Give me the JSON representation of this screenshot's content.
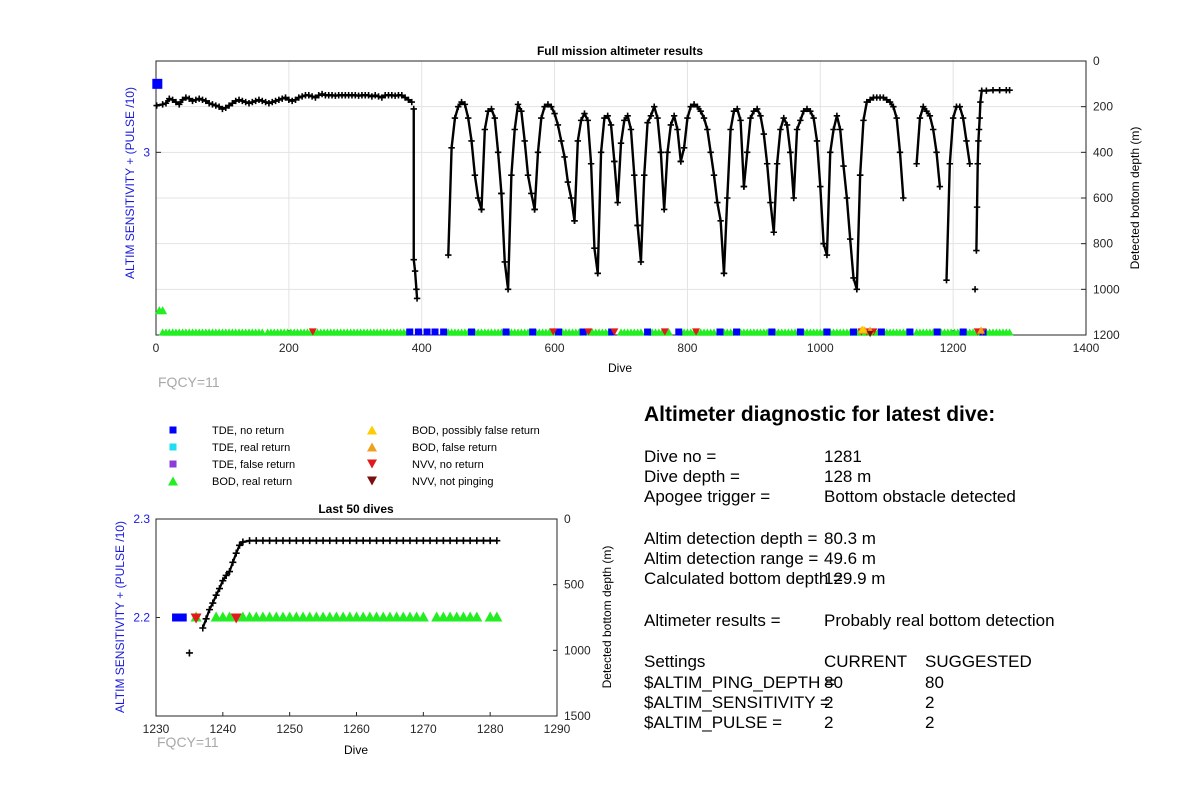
{
  "chart_data": [
    {
      "type": "scatter",
      "title": "Full mission altimeter results",
      "xlabel": "Dive",
      "ylabel_left": "ALTIM SENSITIVITY + (PULSE /10)",
      "ylabel_right": "Detected bottom depth (m)",
      "xlim": [
        0,
        1400
      ],
      "xticks": [
        "0",
        "200",
        "400",
        "600",
        "800",
        "1000",
        "1200",
        "1400"
      ],
      "ylim_left": [
        2.2,
        3.4
      ],
      "yticks_left": [
        "3"
      ],
      "ylim_right_reversed": [
        0,
        1200
      ],
      "yticks_right": [
        "0",
        "200",
        "400",
        "600",
        "800",
        "1000",
        "1200"
      ],
      "grid": true,
      "annotation": "FQCY=11",
      "sensitivity_series": [
        {
          "name": "blue-square",
          "points": [
            [
              2,
              3.3
            ]
          ]
        },
        {
          "name": "green-triangle",
          "points": [
            [
              5,
              2.3
            ],
            [
              10,
              2.3
            ]
          ]
        }
      ],
      "depth_segments": [
        {
          "x": [
            1,
            10,
            15,
            20,
            25,
            30,
            35,
            40,
            45,
            50,
            55,
            60,
            65,
            70,
            75,
            80,
            85,
            90,
            95,
            100,
            105,
            110,
            115,
            120,
            125,
            130,
            135,
            140,
            145,
            150,
            155,
            160,
            165,
            170,
            175,
            180,
            185,
            190,
            195,
            200,
            205,
            210,
            215,
            220,
            225,
            230,
            235,
            240,
            245,
            250,
            255,
            260,
            265,
            270,
            275,
            280,
            285,
            290,
            295,
            300,
            305,
            310,
            315,
            320,
            325,
            330,
            335,
            340,
            345,
            350,
            355,
            360,
            365,
            370,
            375,
            380,
            385
          ],
          "y": [
            195,
            190,
            185,
            165,
            170,
            180,
            190,
            170,
            160,
            165,
            175,
            170,
            165,
            170,
            175,
            185,
            190,
            195,
            200,
            210,
            205,
            195,
            185,
            175,
            170,
            175,
            180,
            185,
            180,
            175,
            170,
            175,
            180,
            185,
            180,
            175,
            170,
            165,
            160,
            170,
            175,
            170,
            160,
            155,
            150,
            150,
            155,
            160,
            150,
            145,
            150,
            150,
            150,
            152,
            150,
            150,
            150,
            150,
            150,
            150,
            152,
            150,
            150,
            150,
            155,
            150,
            155,
            160,
            150,
            150,
            150,
            152,
            150,
            150,
            160,
            170,
            180
          ]
        },
        {
          "x": [
            388,
            388,
            390,
            392,
            393
          ],
          "y": [
            210,
            870,
            920,
            1000,
            1040
          ]
        },
        {
          "x": [
            440,
            445,
            450,
            455,
            460,
            465,
            470,
            475,
            480,
            485,
            490
          ],
          "y": [
            850,
            380,
            250,
            200,
            180,
            190,
            250,
            350,
            500,
            600,
            650
          ]
        },
        {
          "x": [
            490,
            495,
            500,
            505,
            510,
            515,
            520
          ],
          "y": [
            650,
            300,
            220,
            210,
            250,
            400,
            580
          ]
        },
        {
          "x": [
            520,
            525,
            530,
            535,
            540,
            545,
            550,
            555,
            560,
            565,
            570
          ],
          "y": [
            580,
            880,
            1000,
            500,
            300,
            190,
            220,
            350,
            500,
            580,
            650
          ]
        },
        {
          "x": [
            570,
            575,
            580,
            585,
            590,
            595,
            600,
            605,
            610,
            615,
            620,
            625,
            630
          ],
          "y": [
            650,
            400,
            250,
            200,
            190,
            200,
            230,
            280,
            350,
            420,
            530,
            600,
            700
          ]
        },
        {
          "x": [
            630,
            635,
            640,
            645,
            650,
            655,
            660,
            665
          ],
          "y": [
            700,
            350,
            260,
            230,
            260,
            450,
            820,
            930
          ]
        },
        {
          "x": [
            665,
            670,
            675,
            680,
            685,
            690
          ],
          "y": [
            930,
            400,
            250,
            240,
            280,
            440
          ]
        },
        {
          "x": [
            690,
            695,
            700,
            705,
            710,
            715,
            720,
            725
          ],
          "y": [
            440,
            620,
            360,
            260,
            240,
            300,
            500,
            720
          ]
        },
        {
          "x": [
            725,
            730,
            735,
            740,
            745,
            750,
            755,
            760
          ],
          "y": [
            720,
            880,
            500,
            270,
            240,
            200,
            250,
            400
          ]
        },
        {
          "x": [
            760,
            765,
            770,
            775,
            780,
            785,
            790
          ],
          "y": [
            400,
            650,
            400,
            280,
            240,
            300,
            440
          ]
        },
        {
          "x": [
            790,
            795,
            800,
            805,
            810,
            815,
            820,
            825,
            830,
            835,
            840,
            845,
            850,
            855
          ],
          "y": [
            440,
            380,
            250,
            200,
            190,
            200,
            220,
            250,
            300,
            400,
            500,
            620,
            700,
            930
          ]
        },
        {
          "x": [
            855,
            860,
            865,
            870,
            875,
            880,
            885
          ],
          "y": [
            930,
            600,
            300,
            220,
            210,
            260,
            550
          ]
        },
        {
          "x": [
            885,
            890,
            895,
            900,
            905,
            910,
            915,
            920,
            925,
            930
          ],
          "y": [
            550,
            400,
            250,
            220,
            210,
            240,
            320,
            450,
            620,
            750
          ]
        },
        {
          "x": [
            930,
            935,
            940,
            945,
            950,
            955
          ],
          "y": [
            750,
            450,
            300,
            250,
            280,
            400
          ]
        },
        {
          "x": [
            955,
            960,
            965,
            970,
            975,
            980,
            985,
            990,
            995,
            1000,
            1005
          ],
          "y": [
            400,
            600,
            300,
            260,
            220,
            210,
            220,
            250,
            350,
            550,
            800
          ]
        },
        {
          "x": [
            1005,
            1010,
            1015,
            1020,
            1025,
            1030,
            1035,
            1040,
            1045,
            1050,
            1055,
            1060
          ],
          "y": [
            800,
            850,
            400,
            300,
            240,
            300,
            460,
            600,
            780,
            950,
            1000,
            500
          ]
        },
        {
          "x": [
            1060,
            1065,
            1070,
            1075,
            1080,
            1085,
            1090,
            1095,
            1100,
            1105,
            1110,
            1115,
            1120,
            1125
          ],
          "y": [
            500,
            260,
            180,
            170,
            160,
            160,
            160,
            160,
            170,
            180,
            200,
            250,
            400,
            600
          ]
        },
        {
          "x": [
            1145,
            1150,
            1155,
            1160,
            1165,
            1170,
            1175,
            1180
          ],
          "y": [
            450,
            250,
            200,
            220,
            240,
            300,
            400,
            550
          ]
        },
        {
          "x": [
            1190,
            1195,
            1200,
            1205,
            1210,
            1215,
            1220,
            1225
          ],
          "y": [
            960,
            450,
            250,
            200,
            200,
            250,
            350,
            450
          ]
        },
        {
          "x": [
            1233
          ],
          "y": [
            1000
          ]
        },
        {
          "x": [
            1235,
            1236,
            1237,
            1238,
            1239,
            1240,
            1241,
            1243,
            1250,
            1260,
            1270,
            1280,
            1285
          ],
          "y": [
            830,
            640,
            450,
            350,
            300,
            250,
            180,
            130,
            130,
            128,
            128,
            128,
            128
          ]
        }
      ],
      "bottom_markers": {
        "green_triangle_ranges": [
          [
            10,
            160
          ],
          [
            168,
            378
          ],
          [
            440,
            470
          ],
          [
            480,
            520
          ],
          [
            530,
            560
          ],
          [
            572,
            600
          ],
          [
            612,
            640
          ],
          [
            652,
            686
          ],
          [
            700,
            730
          ],
          [
            742,
            776
          ],
          [
            790,
            842
          ],
          [
            855,
            870
          ],
          [
            880,
            920
          ],
          [
            932,
            966
          ],
          [
            975,
            1005
          ],
          [
            1015,
            1045
          ],
          [
            1052,
            1088
          ],
          [
            1100,
            1130
          ],
          [
            1145,
            1172
          ],
          [
            1182,
            1212
          ],
          [
            1220,
            1285
          ]
        ],
        "blue_square_x": [
          382,
          395,
          408,
          420,
          433,
          475,
          527,
          567,
          606,
          643,
          686,
          740,
          787,
          849,
          874,
          927,
          970,
          1010,
          1050,
          1092,
          1135,
          1176,
          1215,
          1245
        ],
        "cyan_square_x": [],
        "purple_square_x": [],
        "red_triangle_x": [
          236,
          598,
          651,
          690,
          766,
          813,
          1062,
          1070,
          1080,
          1237,
          1244
        ],
        "orange_triangle_x": [
          1062,
          1067,
          1075,
          1242
        ],
        "yellow_triangle_x": [
          1064
        ],
        "dark_red_triangle_x": [
          1075
        ]
      }
    },
    {
      "type": "scatter",
      "title": "Last 50 dives",
      "xlabel": "Dive",
      "ylabel_left": "ALTIM SENSITIVITY + (PULSE /10)",
      "ylabel_right": "Detected bottom depth (m)",
      "xlim": [
        1230,
        1290
      ],
      "xticks": [
        "1230",
        "1240",
        "1250",
        "1260",
        "1270",
        "1280",
        "1290"
      ],
      "ylim_left": [
        2.1,
        2.3
      ],
      "yticks_left": [
        "2.2",
        "2.3"
      ],
      "ylim_right_reversed": [
        0,
        1500
      ],
      "yticks_right": [
        "0",
        "500",
        "1000",
        "1500"
      ],
      "grid": false,
      "annotation": "FQCY=11",
      "depth_segments": [
        {
          "x": [
            1235
          ],
          "y": [
            1020
          ]
        },
        {
          "x": [
            1237,
            1237.5,
            1238,
            1238.5,
            1239,
            1239.5,
            1240,
            1240.5,
            1241,
            1241.5,
            1242,
            1242.5,
            1243,
            1244,
            1245,
            1246,
            1247,
            1248,
            1249,
            1250,
            1251,
            1252,
            1253,
            1254,
            1255,
            1256,
            1257,
            1258,
            1259,
            1260,
            1261,
            1262,
            1263,
            1264,
            1265,
            1266,
            1267,
            1268,
            1269,
            1270,
            1271,
            1272,
            1273,
            1274,
            1275,
            1276,
            1277,
            1278,
            1279,
            1280,
            1281
          ],
          "y": [
            830,
            760,
            690,
            640,
            580,
            530,
            470,
            430,
            400,
            330,
            260,
            200,
            175,
            165,
            165,
            165,
            165,
            165,
            165,
            165,
            165,
            165,
            165,
            165,
            165,
            165,
            165,
            165,
            165,
            165,
            165,
            165,
            165,
            165,
            165,
            165,
            165,
            165,
            165,
            165,
            165,
            165,
            165,
            165,
            165,
            165,
            165,
            165,
            165,
            165,
            165
          ]
        }
      ],
      "markers": {
        "blue_square_x": [
          1233,
          1234
        ],
        "green_triangle_x": [
          1236,
          1239,
          1240,
          1241,
          1243,
          1244,
          1245,
          1246,
          1247,
          1248,
          1249,
          1250,
          1251,
          1252,
          1253,
          1254,
          1255,
          1256,
          1257,
          1258,
          1259,
          1260,
          1261,
          1262,
          1263,
          1264,
          1265,
          1266,
          1267,
          1268,
          1269,
          1270,
          1272,
          1273,
          1274,
          1275,
          1276,
          1277,
          1278,
          1280,
          1281
        ],
        "red_triangle_x": [
          1236,
          1242
        ]
      }
    }
  ],
  "legend": {
    "col1": [
      "TDE, no return",
      "TDE, real return",
      "TDE, false return",
      "BOD, real return"
    ],
    "col2": [
      "BOD, possibly false return",
      "BOD, false return",
      "NVV, no return",
      "NVV, not pinging"
    ]
  },
  "colors": {
    "blue": "#0000ff",
    "cyan": "#22ddee",
    "purple": "#8a3dd6",
    "green": "#22ee22",
    "yellow": "#ffcc00",
    "orange": "#f0a020",
    "red": "#e01b1b",
    "darkred": "#7a0f0f",
    "black": "#000000"
  },
  "diagnostic": {
    "title": "Altimeter diagnostic for latest dive:",
    "dive_no_label": "Dive no =",
    "dive_no_value": "1281",
    "dive_depth_label": "Dive depth =",
    "dive_depth_value": "128 m",
    "apogee_label": "Apogee trigger =",
    "apogee_value": "Bottom obstacle detected",
    "det_depth_label": "Altim detection depth =",
    "det_depth_value": "80.3 m",
    "det_range_label": "Altim detection range =",
    "det_range_value": "49.6 m",
    "calc_bottom_label": "Calculated bottom depth =",
    "calc_bottom_value": "129.9 m",
    "results_label": "Altimeter results =",
    "results_value": "Probably real bottom detection",
    "settings_label": "Settings",
    "current_header": "CURRENT",
    "suggested_header": "SUGGESTED",
    "ping_label": "$ALTIM_PING_DEPTH =",
    "ping_current": "80",
    "ping_suggested": "80",
    "sens_label": "$ALTIM_SENSITIVITY =",
    "sens_current": "2",
    "sens_suggested": "2",
    "pulse_label": "$ALTIM_PULSE =",
    "pulse_current": "2",
    "pulse_suggested": "2"
  }
}
